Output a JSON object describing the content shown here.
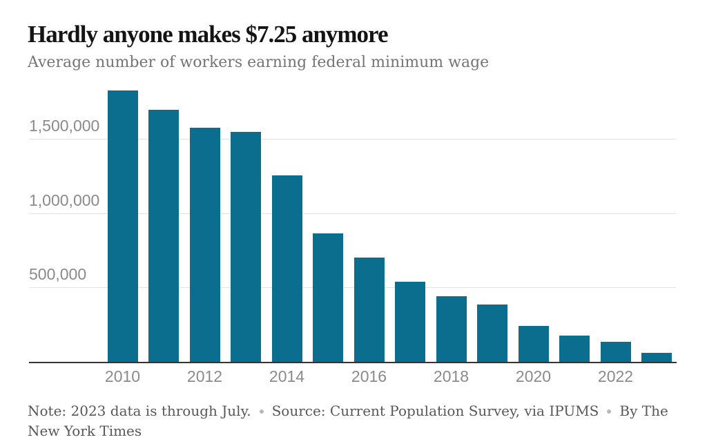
{
  "header": {
    "title": "Hardly anyone makes $7.25 anymore",
    "subtitle": "Average number of workers earning federal minimum wage"
  },
  "footer": {
    "note": "Note: 2023 data is through July.",
    "source": "Source: Current Population Survey, via IPUMS",
    "byline": "By The New York Times"
  },
  "colors": {
    "bar": "#0b6e8f",
    "title_text": "#141414",
    "subtitle_text": "#747474",
    "axis_label": "#8a8a8a",
    "gridline": "#e2e2e2",
    "axis_line": "#333333",
    "footer_text": "#575757",
    "separator_dot": "#b8b8b8"
  },
  "chart_data": {
    "type": "bar",
    "title": "Hardly anyone makes $7.25 anymore",
    "subtitle": "Average number of workers earning federal minimum wage",
    "categories": [
      "2010",
      "2011",
      "2012",
      "2013",
      "2014",
      "2015",
      "2016",
      "2017",
      "2018",
      "2019",
      "2020",
      "2021",
      "2022",
      "2023"
    ],
    "values": [
      1830000,
      1700000,
      1580000,
      1550000,
      1260000,
      870000,
      705000,
      545000,
      445000,
      390000,
      245000,
      180000,
      140000,
      65000
    ],
    "xlabel": "",
    "ylabel": "",
    "x_tick_labels": [
      "2010",
      "2012",
      "2014",
      "2016",
      "2018",
      "2020",
      "2022"
    ],
    "y_ticks": [
      {
        "value": 500000,
        "label": "500,000"
      },
      {
        "value": 1000000,
        "label": "1,000,000"
      },
      {
        "value": 1500000,
        "label": "1,500,000"
      }
    ],
    "ylim": [
      0,
      1900000
    ],
    "grid": true,
    "legend": false,
    "bar_color": "#0b6e8f"
  }
}
